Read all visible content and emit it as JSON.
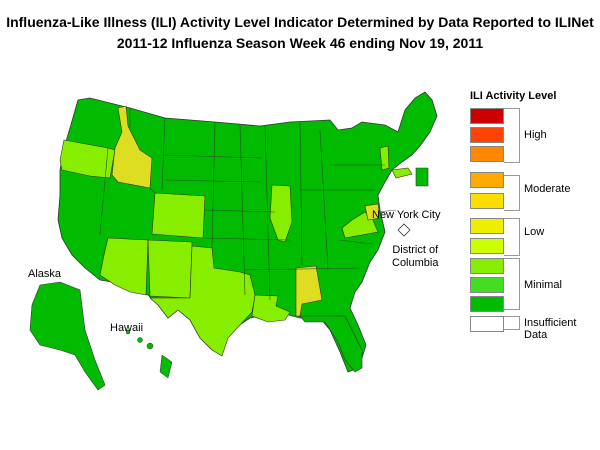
{
  "title_line1": "Influenza-Like Illness (ILI) Activity Level Indicator Determined by Data Reported to ILINet",
  "title_line2": "2011-12  Influenza Season Week  46 ending Nov 19, 2011",
  "map_labels": {
    "alaska": "Alaska",
    "hawaii": "Hawaii",
    "nyc": "New York City",
    "dc": "District of\nColumbia"
  },
  "legend": {
    "title": "ILI Activity Level",
    "levels": [
      {
        "level": 10,
        "color": "#cc0000"
      },
      {
        "level": 9,
        "color": "#ff4400"
      },
      {
        "level": 8,
        "color": "#ff8800"
      },
      {
        "level": 7,
        "color": "#ffaa00"
      },
      {
        "level": 6,
        "color": "#ffdd00"
      },
      {
        "level": 5,
        "color": "#eeee00"
      },
      {
        "level": 4,
        "color": "#ccff00"
      },
      {
        "level": 3,
        "color": "#88ee00"
      },
      {
        "level": 2,
        "color": "#44dd22"
      },
      {
        "level": 1,
        "color": "#00bb00"
      },
      {
        "level": 0,
        "color": "#ffffff"
      }
    ],
    "groups": {
      "high": "High",
      "moderate": "Moderate",
      "low": "Low",
      "minimal": "Minimal",
      "insufficient": "Insufficient Data"
    }
  },
  "state_activity": {
    "Idaho": 5,
    "Alabama": 5,
    "Oregon": 3,
    "Colorado": 3,
    "Arizona": 3,
    "New Mexico": 3,
    "Texas": 3,
    "Louisiana": 3,
    "Virginia": 3,
    "Illinois": 3,
    "Vermont": 3,
    "Massachusetts": 3,
    "New York City": 5,
    "District of Columbia": 0,
    "all_other_states": 1
  }
}
